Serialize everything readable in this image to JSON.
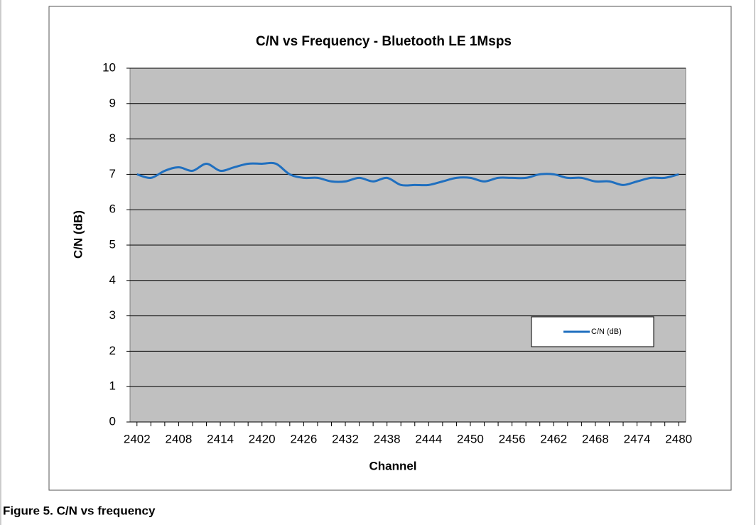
{
  "chart_data": {
    "type": "line",
    "title": "C/N vs Frequency - Bluetooth LE 1Msps",
    "x_label": "Channel",
    "y_label": "C/N (dB)",
    "categories": [
      "2402",
      null,
      null,
      "2408",
      null,
      null,
      "2414",
      null,
      null,
      "2420",
      null,
      null,
      "2426",
      null,
      null,
      "2432",
      null,
      null,
      "2438",
      null,
      null,
      "2444",
      null,
      null,
      "2450",
      null,
      null,
      "2456",
      null,
      null,
      "2462",
      null,
      null,
      "2468",
      null,
      null,
      "2474",
      null,
      null,
      "2480"
    ],
    "series": [
      {
        "name": "C/N (dB)",
        "color": "#1f6fbf",
        "values": [
          7.0,
          6.9,
          7.1,
          7.2,
          7.1,
          7.3,
          7.1,
          7.2,
          7.3,
          7.3,
          7.3,
          7.0,
          6.9,
          6.9,
          6.8,
          6.8,
          6.9,
          6.8,
          6.9,
          6.7,
          6.7,
          6.7,
          6.8,
          6.9,
          6.9,
          6.8,
          6.9,
          6.9,
          6.9,
          7.0,
          7.0,
          6.9,
          6.9,
          6.8,
          6.8,
          6.7,
          6.8,
          6.9,
          6.9,
          7.0
        ]
      }
    ],
    "ylim": [
      0,
      10
    ],
    "yticks": [
      0,
      1,
      2,
      3,
      4,
      5,
      6,
      7,
      8,
      9,
      10
    ],
    "grid": true,
    "legend": "lower right",
    "plot_background": "#c0c0c0"
  },
  "caption": "Figure 5.  C/N vs frequency"
}
